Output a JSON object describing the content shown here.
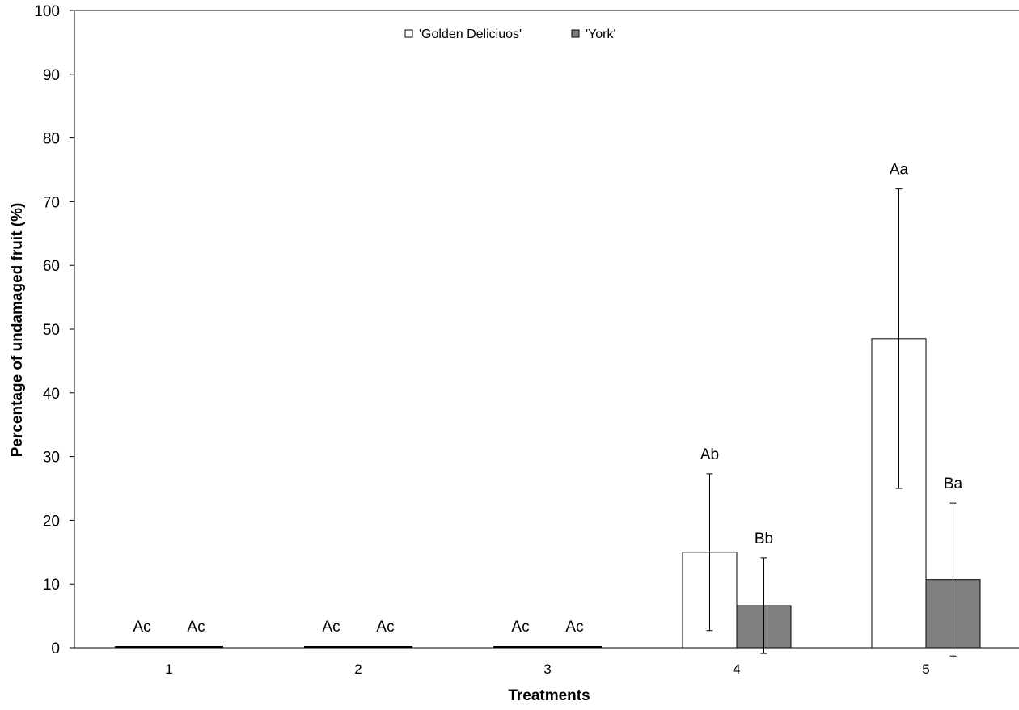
{
  "chart_data": {
    "type": "bar",
    "title": "",
    "xlabel": "Treatments",
    "ylabel": "Percentage of undamaged fruit (%)",
    "ylim": [
      0,
      100
    ],
    "yticks": [
      0,
      10,
      20,
      30,
      40,
      50,
      60,
      70,
      80,
      90,
      100
    ],
    "categories": [
      "1",
      "2",
      "3",
      "4",
      "5"
    ],
    "legend_position": "top-center",
    "grid": false,
    "series": [
      {
        "name": "'Golden Deliciuos'",
        "color": "#ffffff",
        "values": [
          0,
          0,
          0,
          15,
          48.5
        ],
        "errors": [
          0,
          0,
          0,
          12.3,
          23.5
        ],
        "labels": [
          "Ac",
          "Ac",
          "Ac",
          "Ab",
          "Aa"
        ]
      },
      {
        "name": "'York'",
        "color": "#808080",
        "values": [
          0,
          0,
          0,
          6.6,
          10.7
        ],
        "errors": [
          0,
          0,
          0,
          7.5,
          12.0
        ],
        "labels": [
          "Ac",
          "Ac",
          "Ac",
          "Bb",
          "Ba"
        ]
      }
    ]
  }
}
